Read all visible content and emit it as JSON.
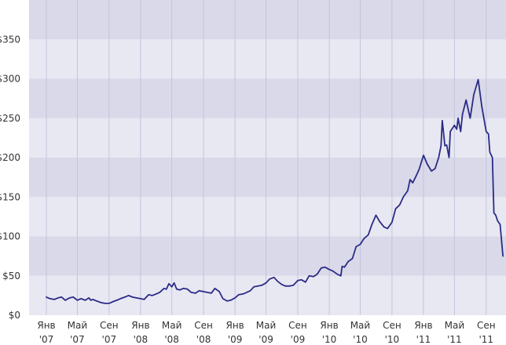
{
  "chart_data": {
    "type": "line",
    "y_ticks": [
      {
        "value": 0,
        "label": "$0"
      },
      {
        "value": 50,
        "label": "$50"
      },
      {
        "value": 100,
        "label": "$100"
      },
      {
        "value": 150,
        "label": "$150"
      },
      {
        "value": 200,
        "label": "$200"
      },
      {
        "value": 250,
        "label": "$250"
      },
      {
        "value": 300,
        "label": "$300"
      },
      {
        "value": 350,
        "label": "$350"
      }
    ],
    "ylim": [
      0,
      400
    ],
    "xlim": [
      "2007-01",
      "2011-11"
    ],
    "x_ticks": [
      {
        "month": "2007-01",
        "label1": "Янв",
        "label2": "'07"
      },
      {
        "month": "2007-05",
        "label1": "Май",
        "label2": "'07"
      },
      {
        "month": "2007-09",
        "label1": "Сен",
        "label2": "'07"
      },
      {
        "month": "2008-01",
        "label1": "Янв",
        "label2": "'08"
      },
      {
        "month": "2008-05",
        "label1": "Май",
        "label2": "'08"
      },
      {
        "month": "2008-09",
        "label1": "Сен",
        "label2": "'08"
      },
      {
        "month": "2009-01",
        "label1": "Янв",
        "label2": "'09"
      },
      {
        "month": "2009-05",
        "label1": "Май",
        "label2": "'09"
      },
      {
        "month": "2009-09",
        "label1": "Сен",
        "label2": "'09"
      },
      {
        "month": "2010-01",
        "label1": "Янв",
        "label2": "'10"
      },
      {
        "month": "2010-05",
        "label1": "Май",
        "label2": "'10"
      },
      {
        "month": "2010-09",
        "label1": "Сен",
        "label2": "'10"
      },
      {
        "month": "2011-01",
        "label1": "Янв",
        "label2": "'11"
      },
      {
        "month": "2011-05",
        "label1": "Май",
        "label2": "'11"
      },
      {
        "month": "2011-09",
        "label1": "Сен",
        "label2": "'11"
      }
    ],
    "grid": true,
    "colors": {
      "band_dark": "#d9d9ea",
      "band_light": "#e8e8f3",
      "gridline": "#c4c4dc",
      "line": "#2b2b86"
    },
    "series": [
      {
        "points": [
          [
            "2007-01-01",
            23
          ],
          [
            "2007-01-15",
            21
          ],
          [
            "2007-02-01",
            20
          ],
          [
            "2007-02-15",
            22
          ],
          [
            "2007-03-01",
            23
          ],
          [
            "2007-03-15",
            19
          ],
          [
            "2007-04-01",
            22
          ],
          [
            "2007-04-15",
            23
          ],
          [
            "2007-05-01",
            19
          ],
          [
            "2007-05-15",
            21
          ],
          [
            "2007-06-01",
            19
          ],
          [
            "2007-06-15",
            22
          ],
          [
            "2007-06-22",
            19
          ],
          [
            "2007-07-01",
            20
          ],
          [
            "2007-07-15",
            18
          ],
          [
            "2007-08-01",
            16
          ],
          [
            "2007-08-15",
            15
          ],
          [
            "2007-09-01",
            15
          ],
          [
            "2007-09-15",
            17
          ],
          [
            "2007-10-01",
            19
          ],
          [
            "2007-10-15",
            21
          ],
          [
            "2007-11-01",
            23
          ],
          [
            "2007-11-15",
            25
          ],
          [
            "2007-12-01",
            23
          ],
          [
            "2007-12-15",
            22
          ],
          [
            "2008-01-01",
            21
          ],
          [
            "2008-01-15",
            20
          ],
          [
            "2008-02-01",
            26
          ],
          [
            "2008-02-15",
            25
          ],
          [
            "2008-03-01",
            27
          ],
          [
            "2008-03-15",
            29
          ],
          [
            "2008-04-01",
            34
          ],
          [
            "2008-04-10",
            33
          ],
          [
            "2008-04-20",
            40
          ],
          [
            "2008-05-01",
            36
          ],
          [
            "2008-05-10",
            41
          ],
          [
            "2008-05-20",
            33
          ],
          [
            "2008-06-01",
            32
          ],
          [
            "2008-06-15",
            34
          ],
          [
            "2008-07-01",
            33
          ],
          [
            "2008-07-15",
            29
          ],
          [
            "2008-08-01",
            28
          ],
          [
            "2008-08-15",
            31
          ],
          [
            "2008-09-01",
            30
          ],
          [
            "2008-09-15",
            29
          ],
          [
            "2008-10-01",
            28
          ],
          [
            "2008-10-15",
            34
          ],
          [
            "2008-11-01",
            30
          ],
          [
            "2008-11-15",
            21
          ],
          [
            "2008-12-01",
            18
          ],
          [
            "2008-12-15",
            19
          ],
          [
            "2009-01-01",
            22
          ],
          [
            "2009-01-15",
            26
          ],
          [
            "2009-02-01",
            27
          ],
          [
            "2009-02-15",
            29
          ],
          [
            "2009-03-01",
            31
          ],
          [
            "2009-03-15",
            36
          ],
          [
            "2009-04-01",
            37
          ],
          [
            "2009-04-15",
            38
          ],
          [
            "2009-05-01",
            41
          ],
          [
            "2009-05-15",
            46
          ],
          [
            "2009-06-01",
            48
          ],
          [
            "2009-06-15",
            43
          ],
          [
            "2009-07-01",
            39
          ],
          [
            "2009-07-15",
            37
          ],
          [
            "2009-08-01",
            37
          ],
          [
            "2009-08-15",
            38
          ],
          [
            "2009-09-01",
            44
          ],
          [
            "2009-09-15",
            45
          ],
          [
            "2009-10-01",
            42
          ],
          [
            "2009-10-15",
            50
          ],
          [
            "2009-11-01",
            49
          ],
          [
            "2009-11-15",
            52
          ],
          [
            "2009-12-01",
            60
          ],
          [
            "2009-12-15",
            61
          ],
          [
            "2010-01-01",
            58
          ],
          [
            "2010-01-15",
            56
          ],
          [
            "2010-02-01",
            52
          ],
          [
            "2010-02-15",
            50
          ],
          [
            "2010-02-20",
            62
          ],
          [
            "2010-03-01",
            61
          ],
          [
            "2010-03-15",
            68
          ],
          [
            "2010-04-01",
            72
          ],
          [
            "2010-04-15",
            87
          ],
          [
            "2010-05-01",
            90
          ],
          [
            "2010-05-15",
            97
          ],
          [
            "2010-06-01",
            102
          ],
          [
            "2010-06-15",
            115
          ],
          [
            "2010-07-01",
            127
          ],
          [
            "2010-07-15",
            119
          ],
          [
            "2010-08-01",
            112
          ],
          [
            "2010-08-15",
            110
          ],
          [
            "2010-09-01",
            118
          ],
          [
            "2010-09-15",
            135
          ],
          [
            "2010-10-01",
            140
          ],
          [
            "2010-10-15",
            150
          ],
          [
            "2010-11-01",
            158
          ],
          [
            "2010-11-10",
            172
          ],
          [
            "2010-11-20",
            168
          ],
          [
            "2010-12-01",
            175
          ],
          [
            "2010-12-15",
            185
          ],
          [
            "2011-01-01",
            203
          ],
          [
            "2011-01-15",
            192
          ],
          [
            "2011-02-01",
            183
          ],
          [
            "2011-02-15",
            186
          ],
          [
            "2011-03-01",
            200
          ],
          [
            "2011-03-10",
            215
          ],
          [
            "2011-03-15",
            247
          ],
          [
            "2011-03-25",
            215
          ],
          [
            "2011-04-01",
            216
          ],
          [
            "2011-04-10",
            200
          ],
          [
            "2011-04-15",
            233
          ],
          [
            "2011-05-01",
            241
          ],
          [
            "2011-05-10",
            236
          ],
          [
            "2011-05-15",
            250
          ],
          [
            "2011-05-25",
            233
          ],
          [
            "2011-06-01",
            255
          ],
          [
            "2011-06-15",
            273
          ],
          [
            "2011-07-01",
            250
          ],
          [
            "2011-07-15",
            280
          ],
          [
            "2011-08-01",
            299
          ],
          [
            "2011-08-15",
            265
          ],
          [
            "2011-09-01",
            233
          ],
          [
            "2011-09-10",
            230
          ],
          [
            "2011-09-15",
            207
          ],
          [
            "2011-09-25",
            200
          ],
          [
            "2011-10-01",
            130
          ],
          [
            "2011-10-08",
            127
          ],
          [
            "2011-10-15",
            120
          ],
          [
            "2011-10-25",
            115
          ],
          [
            "2011-11-05",
            75
          ]
        ]
      }
    ]
  }
}
